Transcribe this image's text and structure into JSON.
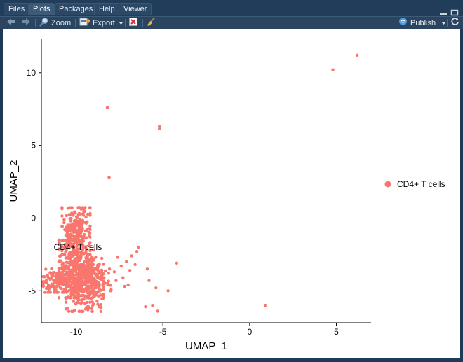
{
  "tabs": [
    {
      "label": "Files"
    },
    {
      "label": "Plots"
    },
    {
      "label": "Packages"
    },
    {
      "label": "Help"
    },
    {
      "label": "Viewer"
    }
  ],
  "active_tab": "Plots",
  "toolbar": {
    "zoom_label": "Zoom",
    "export_label": "Export",
    "publish_label": "Publish"
  },
  "icons": [
    "back-arrow-icon",
    "forward-arrow-icon",
    "zoom-icon",
    "export-icon",
    "chevron-down-icon",
    "remove-plot-icon",
    "broom-icon",
    "publish-icon",
    "refresh-icon",
    "minimize-icon",
    "maximize-icon"
  ],
  "colors": {
    "point": "#F8766D"
  },
  "chart_data": {
    "type": "scatter",
    "xlabel": "UMAP_1",
    "ylabel": "UMAP_2",
    "xlim": [
      -12,
      7
    ],
    "ylim": [
      -7.2,
      12.3
    ],
    "xticks": [
      -10,
      -5,
      0,
      5
    ],
    "yticks": [
      -5,
      0,
      5,
      10
    ],
    "grid": false,
    "legend_position": "right",
    "series": [
      {
        "name": "CD4+ T cells",
        "color": "#F8766D",
        "cluster_label": "CD4+ T cells",
        "outliers": [
          {
            "x": 6.2,
            "y": 11.2
          },
          {
            "x": 4.8,
            "y": 10.2
          },
          {
            "x": -8.2,
            "y": 7.6
          },
          {
            "x": -5.2,
            "y": 6.3
          },
          {
            "x": -5.2,
            "y": 6.15
          },
          {
            "x": -8.1,
            "y": 2.8
          },
          {
            "x": -4.2,
            "y": -3.1
          },
          {
            "x": -5.9,
            "y": -3.5
          },
          {
            "x": -6.4,
            "y": -2.0
          },
          {
            "x": -6.5,
            "y": -2.3
          },
          {
            "x": -6.8,
            "y": -2.6
          },
          {
            "x": -7.1,
            "y": -3.0
          },
          {
            "x": -7.4,
            "y": -3.3
          },
          {
            "x": -7.8,
            "y": -3.7
          },
          {
            "x": -7.3,
            "y": -4.1
          },
          {
            "x": -7.0,
            "y": -4.6
          },
          {
            "x": -7.2,
            "y": -4.7
          },
          {
            "x": -5.8,
            "y": -4.3
          },
          {
            "x": -5.4,
            "y": -4.8
          },
          {
            "x": -4.7,
            "y": -5.0
          },
          {
            "x": -5.6,
            "y": -6.0
          },
          {
            "x": -5.3,
            "y": -6.4
          },
          {
            "x": -6.0,
            "y": -6.1
          },
          {
            "x": 0.9,
            "y": -6.0
          },
          {
            "x": -6.9,
            "y": -3.6
          },
          {
            "x": -6.6,
            "y": -3.2
          },
          {
            "x": -7.6,
            "y": -2.7
          },
          {
            "x": -8.2,
            "y": -4.5
          },
          {
            "x": -8.0,
            "y": -5.0
          },
          {
            "x": -7.7,
            "y": -4.3
          }
        ],
        "cluster_regions": [
          {
            "cx": -10.0,
            "cy": -0.9,
            "sx": 0.45,
            "sy": 0.9,
            "n": 260
          },
          {
            "cx": -10.0,
            "cy": -3.5,
            "sx": 0.55,
            "sy": 1.1,
            "n": 240
          },
          {
            "cx": -10.9,
            "cy": -4.3,
            "sx": 0.55,
            "sy": 0.45,
            "n": 160
          },
          {
            "cx": -9.5,
            "cy": -4.8,
            "sx": 0.6,
            "sy": 0.9,
            "n": 220
          },
          {
            "cx": -9.4,
            "cy": -3.6,
            "sx": 0.5,
            "sy": 0.5,
            "n": 80
          },
          {
            "cx": -8.7,
            "cy": -4.4,
            "sx": 0.4,
            "sy": 0.5,
            "n": 40
          }
        ]
      }
    ]
  }
}
